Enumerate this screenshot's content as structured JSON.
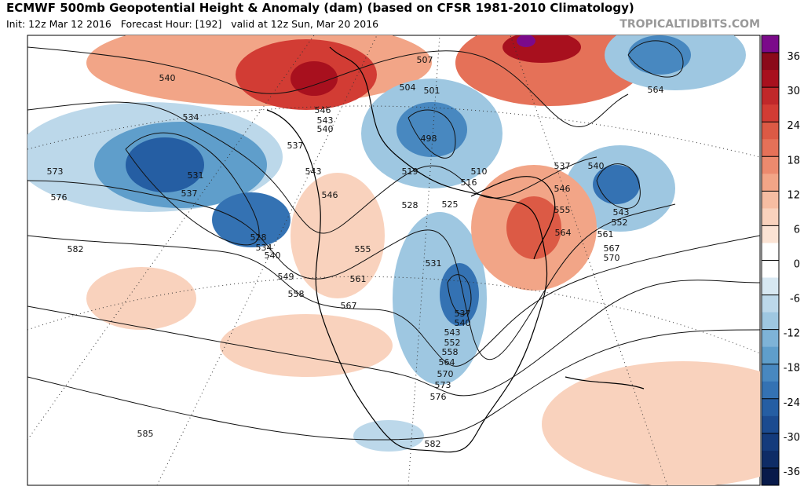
{
  "header": {
    "title": "ECMWF 500mb Geopotential Height & Anomaly (dam) (based on CFSR 1981-2010 Climatology)",
    "subtitle": "Init: 12z Mar 12 2016   Forecast Hour: [192]   valid at 12z Sun, Mar 20 2016",
    "source": "TROPICALTIDBITS.COM"
  },
  "colorbar": {
    "ticks": [
      36,
      30,
      24,
      18,
      12,
      6,
      0,
      -6,
      -12,
      -18,
      -24,
      -30,
      -36
    ],
    "colors": [
      "#7b0a8a",
      "#8b0a1a",
      "#a8101e",
      "#c0282a",
      "#d23c34",
      "#dc5a45",
      "#e57158",
      "#ec8a6e",
      "#f2a587",
      "#f6bda2",
      "#f9d2bd",
      "#fbe3d4",
      "#ffffff",
      "#ffffff",
      "#d7e8f2",
      "#bcd8ea",
      "#9ec7e1",
      "#7eb3d7",
      "#5f9ecb",
      "#4888c0",
      "#3472b3",
      "#255ea3",
      "#1b4b90",
      "#143b7c",
      "#0e2c66",
      "#081a4a"
    ]
  },
  "contour_labels": [
    540,
    534,
    531,
    537,
    573,
    576,
    582,
    528,
    534,
    540,
    549,
    558,
    546,
    543,
    540,
    537,
    543,
    546,
    555,
    561,
    567,
    507,
    504,
    501,
    498,
    519,
    510,
    516,
    528,
    525,
    531,
    537,
    540,
    543,
    552,
    558,
    564,
    570,
    573,
    576,
    582,
    585,
    537,
    546,
    555,
    564,
    561,
    567,
    570,
    540,
    543,
    552,
    564
  ]
}
